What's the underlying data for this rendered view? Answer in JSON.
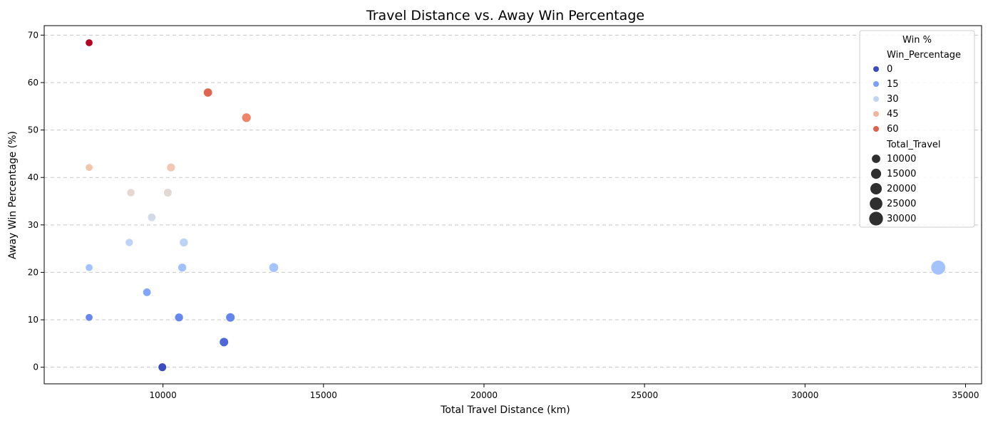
{
  "chart_data": {
    "type": "scatter",
    "title": "Travel Distance vs. Away Win Percentage",
    "xlabel": "Total Travel Distance (km)",
    "ylabel": "Away Win Percentage (%)",
    "xlim": [
      6300,
      35500
    ],
    "ylim": [
      -3.5,
      72
    ],
    "xticks": [
      10000,
      15000,
      20000,
      25000,
      30000,
      35000
    ],
    "yticks": [
      0,
      10,
      20,
      30,
      40,
      50,
      60,
      70
    ],
    "grid": "y-dashed",
    "legend": {
      "title": "Win %",
      "placement": "top-right",
      "hue_title": "Win_Percentage",
      "hue_entries": [
        {
          "label": "0",
          "color": "#3b4cc0"
        },
        {
          "label": "15",
          "color": "#7b9ff9"
        },
        {
          "label": "30",
          "color": "#c0d4f5"
        },
        {
          "label": "45",
          "color": "#f2b69a"
        },
        {
          "label": "60",
          "color": "#de604d"
        }
      ],
      "size_title": "Total_Travel",
      "size_entries": [
        {
          "label": "10000",
          "value": 10000
        },
        {
          "label": "15000",
          "value": 15000
        },
        {
          "label": "20000",
          "value": 20000
        },
        {
          "label": "25000",
          "value": 25000
        },
        {
          "label": "30000",
          "value": 30000
        }
      ]
    },
    "points": [
      {
        "x": 7700,
        "y": 68.4,
        "color": "#b40426"
      },
      {
        "x": 11400,
        "y": 57.9,
        "color": "#e0654f"
      },
      {
        "x": 12600,
        "y": 52.6,
        "color": "#ee8468"
      },
      {
        "x": 7700,
        "y": 42.1,
        "color": "#f4c5ad"
      },
      {
        "x": 10250,
        "y": 42.1,
        "color": "#f3c8b2"
      },
      {
        "x": 9000,
        "y": 36.8,
        "color": "#e6d7cf"
      },
      {
        "x": 10150,
        "y": 36.8,
        "color": "#e4d9d2"
      },
      {
        "x": 9650,
        "y": 31.6,
        "color": "#d1dae9"
      },
      {
        "x": 8950,
        "y": 26.3,
        "color": "#bfd3f6"
      },
      {
        "x": 10650,
        "y": 26.3,
        "color": "#bcd2f7"
      },
      {
        "x": 7700,
        "y": 21.0,
        "color": "#a2c1ff"
      },
      {
        "x": 10600,
        "y": 21.0,
        "color": "#a1c0ff"
      },
      {
        "x": 13450,
        "y": 21.0,
        "color": "#a5c3fe"
      },
      {
        "x": 34150,
        "y": 21.0,
        "color": "#a3c2fe"
      },
      {
        "x": 9500,
        "y": 15.8,
        "color": "#82a6fb"
      },
      {
        "x": 7700,
        "y": 10.5,
        "color": "#6788ee"
      },
      {
        "x": 10500,
        "y": 10.5,
        "color": "#6687ed"
      },
      {
        "x": 12100,
        "y": 10.5,
        "color": "#6485ec"
      },
      {
        "x": 11900,
        "y": 5.3,
        "color": "#4e68d8"
      },
      {
        "x": 9980,
        "y": 0.0,
        "color": "#3b4cc0"
      }
    ]
  }
}
